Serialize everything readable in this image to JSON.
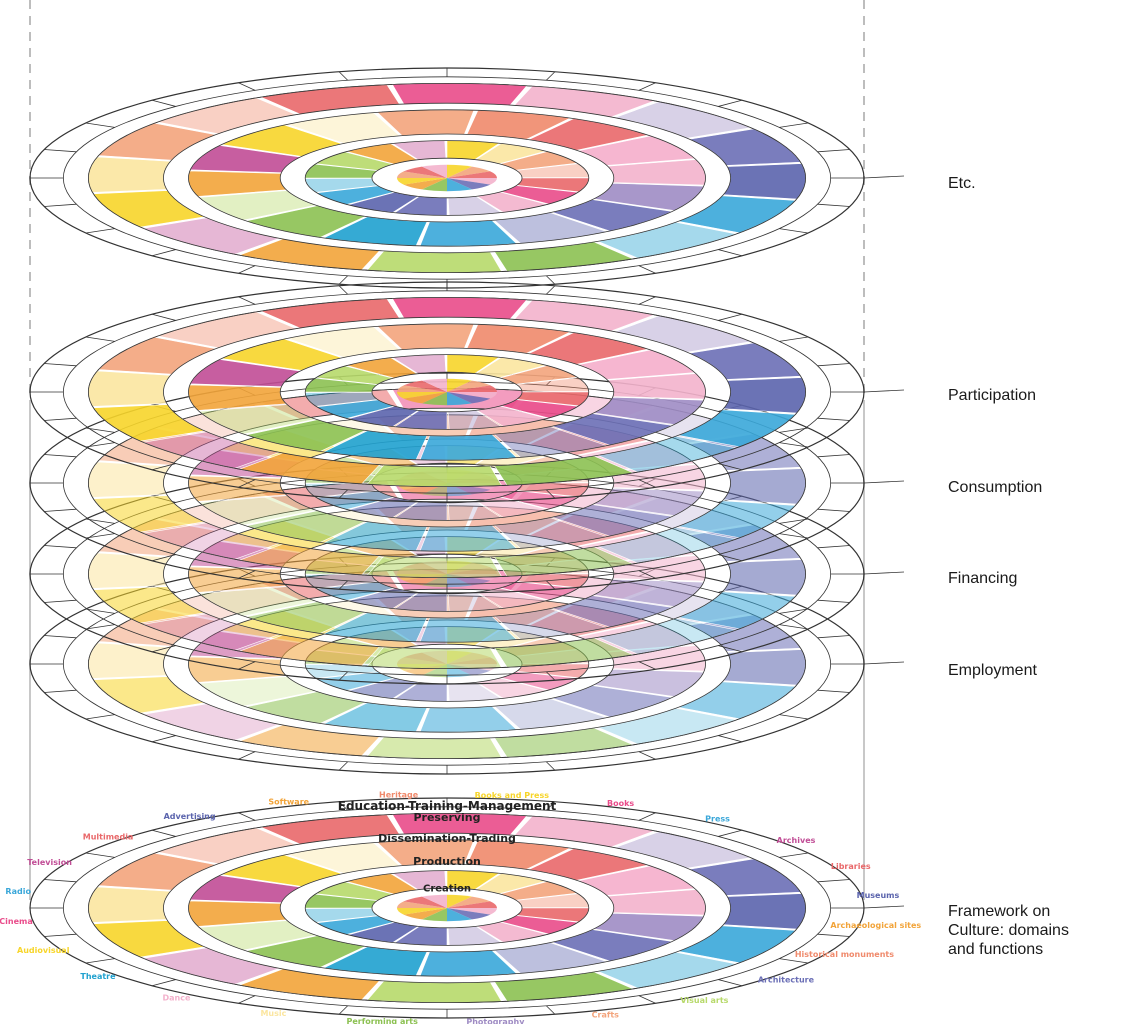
{
  "layers": [
    {
      "id": "etc",
      "label": "Etc.",
      "detail": "full"
    },
    {
      "id": "participation",
      "label": "Participation",
      "detail": "full"
    },
    {
      "id": "consumption",
      "label": "Consumption",
      "detail": "faded"
    },
    {
      "id": "financing",
      "label": "Financing",
      "detail": "faded"
    },
    {
      "id": "employment",
      "label": "Employment",
      "detail": "faded"
    },
    {
      "id": "framework",
      "label_lines": [
        "Framework on",
        "Culture: domains",
        "and functions"
      ],
      "detail": "labeled"
    }
  ],
  "rings": {
    "outer": "Education-Training-Management",
    "preserving": "Preserving",
    "dissemination": "Dissemination-Trading",
    "production": "Production",
    "creation": "Creation"
  },
  "domains": [
    "Books and Press",
    "Books",
    "Press",
    "Archives",
    "Libraries",
    "Museums",
    "Archaeological sites",
    "Historical monuments",
    "Architecture",
    "Visual arts",
    "Crafts",
    "Photography",
    "Performing arts",
    "Music",
    "Dance",
    "Theatre",
    "Audiovisual",
    "Cinema",
    "Radio",
    "Television",
    "Multimedia",
    "Advertising",
    "Software",
    "Heritage"
  ],
  "sector_colors": [
    "#f7d52a",
    "#fbe6a0",
    "#f3a47c",
    "#f08a6c",
    "#e9686a",
    "#e94b8a",
    "#f3b2cc",
    "#9f8cc4",
    "#6b6fb6",
    "#5b64ad",
    "#3aa7d9",
    "#1fa1cf",
    "#8cc152",
    "#b7d96a",
    "#f2a43a",
    "#c14d96"
  ],
  "colors": {
    "line": "#333333",
    "dashed": "#bdbdbd",
    "white": "#ffffff"
  }
}
